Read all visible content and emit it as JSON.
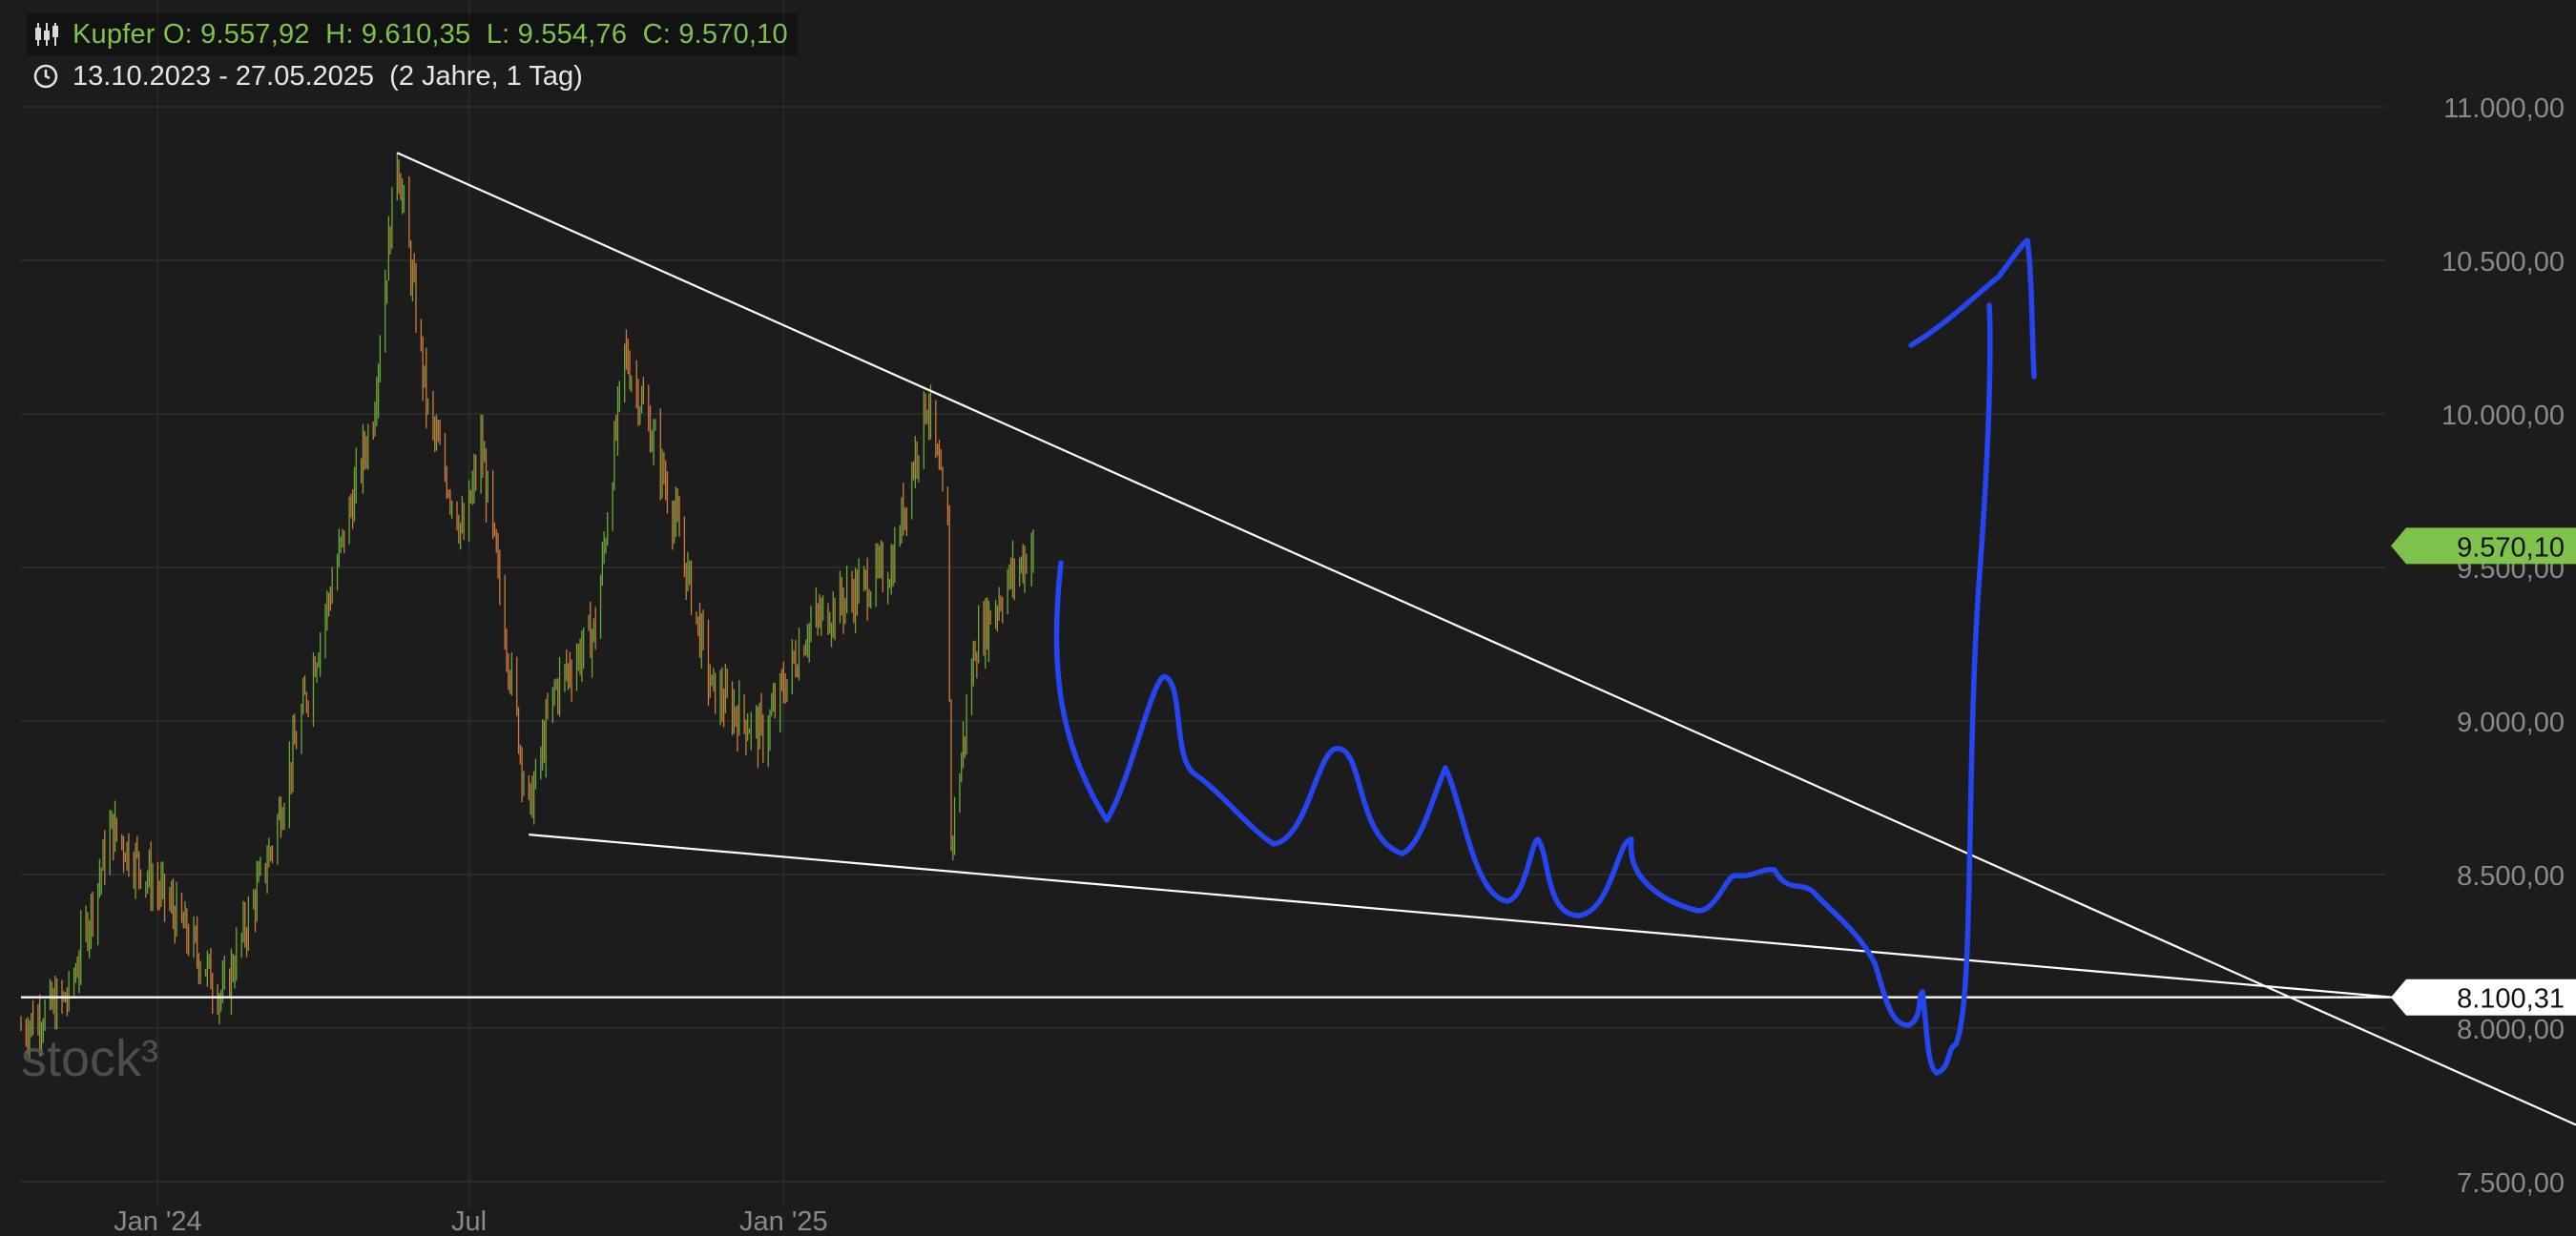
{
  "header": {
    "instrument_line": "Kupfer O: 9.557,92  H: 9.610,35  L: 9.554,76  C: 9.570,10",
    "range_line": "13.10.2023 - 27.05.2025  (2 Jahre, 1 Tag)",
    "instrument_icon": "candlestick-icon",
    "range_icon": "clock-icon"
  },
  "watermark": "stock³",
  "colors": {
    "background": "#1c1c1c",
    "grid": "#2a2a2a",
    "up": "#6aa83a",
    "down": "#d07a3c",
    "accent_green": "#7fc24b",
    "trendline": "#ffffff",
    "drawing": "#2545f0",
    "axis_text": "#8a8a8a"
  },
  "chart_data": {
    "type": "candlestick",
    "title": "Kupfer",
    "xlabel": "",
    "ylabel": "",
    "ylim": [
      7500,
      11250
    ],
    "grid": true,
    "y_ticks": [
      "7.500,00",
      "8.000,00",
      "8.500,00",
      "9.000,00",
      "9.500,00",
      "10.000,00",
      "10.500,00",
      "11.000,00"
    ],
    "x_ticks": [
      "Jan '24",
      "Jul",
      "Jan '25"
    ],
    "price_labels": [
      {
        "name": "last",
        "value": 9570.1,
        "text": "9.570,10",
        "color": "#7fc24b"
      },
      {
        "name": "support",
        "value": 8100.31,
        "text": "8.100,31",
        "color": "#ffffff"
      }
    ],
    "price_series_anchors": [
      {
        "date": "2023-10-13",
        "close": 8000
      },
      {
        "date": "2023-11-10",
        "close": 8100
      },
      {
        "date": "2023-12-05",
        "close": 8650
      },
      {
        "date": "2024-01-08",
        "close": 8400
      },
      {
        "date": "2024-02-08",
        "close": 8100
      },
      {
        "date": "2024-03-08",
        "close": 8600
      },
      {
        "date": "2024-04-10",
        "close": 9400
      },
      {
        "date": "2024-05-06",
        "close": 10000
      },
      {
        "date": "2024-05-20",
        "close": 10850
      },
      {
        "date": "2024-06-07",
        "close": 10000
      },
      {
        "date": "2024-06-28",
        "close": 9600
      },
      {
        "date": "2024-07-08",
        "close": 9900
      },
      {
        "date": "2024-08-05",
        "close": 8700
      },
      {
        "date": "2024-08-20",
        "close": 9100
      },
      {
        "date": "2024-09-13",
        "close": 9300
      },
      {
        "date": "2024-09-30",
        "close": 10200
      },
      {
        "date": "2024-10-18",
        "close": 9900
      },
      {
        "date": "2024-11-01",
        "close": 9600
      },
      {
        "date": "2024-11-20",
        "close": 9100
      },
      {
        "date": "2024-12-20",
        "close": 8950
      },
      {
        "date": "2025-01-15",
        "close": 9300
      },
      {
        "date": "2025-02-07",
        "close": 9400
      },
      {
        "date": "2025-03-05",
        "close": 9500
      },
      {
        "date": "2025-03-26",
        "close": 10050
      },
      {
        "date": "2025-04-07",
        "close": 9600
      },
      {
        "date": "2025-04-09",
        "close": 8600
      },
      {
        "date": "2025-04-23",
        "close": 9250
      },
      {
        "date": "2025-05-12",
        "close": 9450
      },
      {
        "date": "2025-05-27",
        "close": 9570
      }
    ],
    "trendlines": [
      {
        "name": "upper-resistance",
        "from": {
          "date": "2024-05-20",
          "value": 10850
        },
        "to": {
          "date": "2025-03-26",
          "value": 10080
        }
      },
      {
        "name": "lower-support",
        "from": {
          "date": "2024-08-05",
          "value": 8630
        },
        "to": {
          "date": "2025-04-09",
          "value": 8510
        }
      },
      {
        "name": "horizontal-support",
        "value": 8100.31
      }
    ],
    "annotations": [
      {
        "name": "hand-drawn-forecast-path",
        "description": ""
      }
    ]
  }
}
